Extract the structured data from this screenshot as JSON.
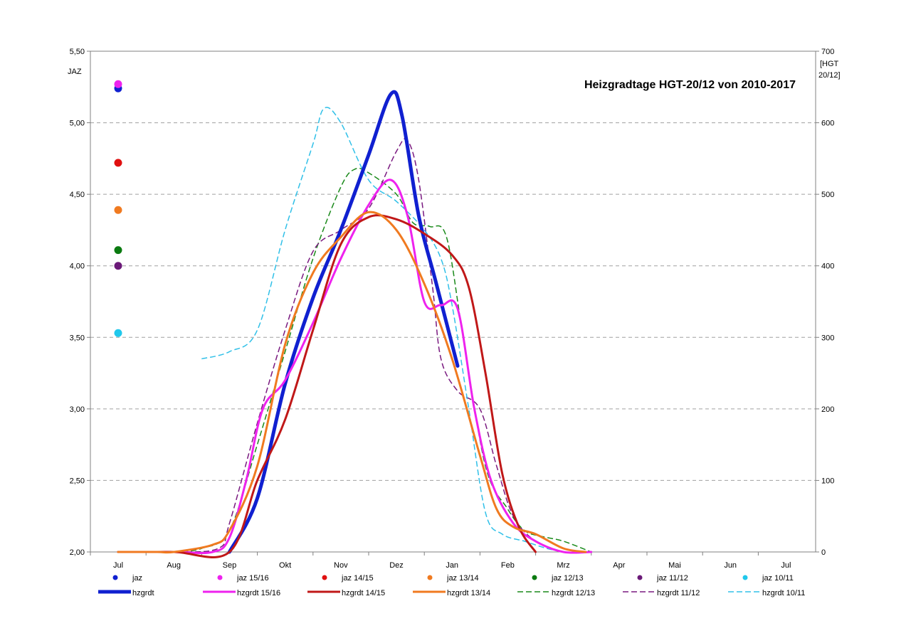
{
  "chart_data": {
    "type": "line",
    "title": "Heizgradtage HGT-20/12 von 2010-2017",
    "y_left": {
      "label": "JAZ",
      "range": [
        2.0,
        5.5
      ],
      "ticks": [
        "2,00",
        "2,50",
        "3,00",
        "3,50",
        "4,00",
        "4,50",
        "5,00",
        "5,50"
      ]
    },
    "y_right": {
      "label_line1": "[HGT",
      "label_line2": "20/12]",
      "range": [
        0,
        700
      ],
      "ticks": [
        "0",
        "100",
        "200",
        "300",
        "400",
        "500",
        "600",
        "700"
      ]
    },
    "x_ticks": [
      "Jul",
      "Aug",
      "Sep",
      "Okt",
      "Nov",
      "Dez",
      "Jan",
      "Feb",
      "Mrz",
      "Apr",
      "Mai",
      "Jun",
      "Jul"
    ],
    "grid": "horizontal dashed",
    "legend_position": "bottom",
    "jaz_points": [
      {
        "name": "jaz",
        "value": 5.24,
        "color": "#1020d0"
      },
      {
        "name": "jaz 15/16",
        "value": 5.27,
        "color": "#ee22ee"
      },
      {
        "name": "jaz 14/15",
        "value": 4.72,
        "color": "#e01010"
      },
      {
        "name": "jaz 13/14",
        "value": 4.39,
        "color": "#f07a20"
      },
      {
        "name": "jaz 12/13",
        "value": 4.11,
        "color": "#0a7a10"
      },
      {
        "name": "jaz 11/12",
        "value": 4.0,
        "color": "#6b1a78"
      },
      {
        "name": "jaz 10/11",
        "value": 3.53,
        "color": "#20c8ec"
      }
    ],
    "series": [
      {
        "name": "hzgrdt",
        "color": "#1020d0",
        "style": "solid",
        "width": 5,
        "points": [
          [
            2.0,
            0
          ],
          [
            2.5,
            75
          ],
          [
            3.0,
            235
          ],
          [
            3.5,
            355
          ],
          [
            4.0,
            450
          ],
          [
            4.5,
            555
          ],
          [
            4.9,
            640
          ],
          [
            5.1,
            610
          ],
          [
            5.4,
            470
          ],
          [
            5.7,
            380
          ],
          [
            6.1,
            260
          ]
        ]
      },
      {
        "name": "hzgrdt 15/16",
        "color": "#ee22ee",
        "style": "solid",
        "width": 3,
        "points": [
          [
            0,
            0
          ],
          [
            1,
            0
          ],
          [
            1.7,
            0
          ],
          [
            2.0,
            20
          ],
          [
            2.3,
            100
          ],
          [
            2.6,
            200
          ],
          [
            3.0,
            240
          ],
          [
            3.5,
            320
          ],
          [
            4.0,
            410
          ],
          [
            4.5,
            485
          ],
          [
            4.9,
            520
          ],
          [
            5.2,
            470
          ],
          [
            5.5,
            350
          ],
          [
            5.8,
            345
          ],
          [
            6.1,
            340
          ],
          [
            6.4,
            200
          ],
          [
            6.7,
            100
          ],
          [
            7.1,
            40
          ],
          [
            7.5,
            15
          ],
          [
            8.0,
            0
          ],
          [
            8.5,
            0
          ]
        ]
      },
      {
        "name": "hzgrdt 14/15",
        "color": "#c01818",
        "style": "solid",
        "width": 3,
        "points": [
          [
            0,
            0
          ],
          [
            1,
            0
          ],
          [
            2.0,
            0
          ],
          [
            2.5,
            100
          ],
          [
            3.0,
            185
          ],
          [
            3.5,
            310
          ],
          [
            4.0,
            430
          ],
          [
            4.5,
            468
          ],
          [
            5.0,
            465
          ],
          [
            5.5,
            445
          ],
          [
            6.0,
            415
          ],
          [
            6.3,
            370
          ],
          [
            6.6,
            250
          ],
          [
            6.9,
            110
          ],
          [
            7.2,
            35
          ],
          [
            7.5,
            0
          ]
        ]
      },
      {
        "name": "hzgrdt 13/14",
        "color": "#f07a20",
        "style": "solid",
        "width": 3,
        "points": [
          [
            0,
            0
          ],
          [
            0.7,
            0
          ],
          [
            1,
            0
          ],
          [
            1.7,
            10
          ],
          [
            2.0,
            30
          ],
          [
            2.5,
            120
          ],
          [
            3.0,
            290
          ],
          [
            3.5,
            390
          ],
          [
            4.0,
            440
          ],
          [
            4.5,
            475
          ],
          [
            5.0,
            450
          ],
          [
            5.5,
            375
          ],
          [
            6.0,
            270
          ],
          [
            6.5,
            135
          ],
          [
            6.8,
            60
          ],
          [
            7.1,
            35
          ],
          [
            7.5,
            25
          ],
          [
            8.0,
            5
          ],
          [
            8.4,
            0
          ]
        ]
      },
      {
        "name": "hzgrdt 12/13",
        "color": "#1a8a1a",
        "style": "dashed",
        "width": 1.5,
        "points": [
          [
            1.0,
            0
          ],
          [
            1.5,
            5
          ],
          [
            2.0,
            30
          ],
          [
            2.5,
            150
          ],
          [
            3.0,
            280
          ],
          [
            3.5,
            410
          ],
          [
            4.0,
            510
          ],
          [
            4.25,
            535
          ],
          [
            4.5,
            530
          ],
          [
            5.0,
            500
          ],
          [
            5.3,
            460
          ],
          [
            5.6,
            455
          ],
          [
            5.9,
            440
          ],
          [
            6.2,
            300
          ],
          [
            6.6,
            120
          ],
          [
            7.0,
            60
          ],
          [
            7.3,
            30
          ],
          [
            7.6,
            22
          ],
          [
            8.0,
            15
          ],
          [
            8.5,
            0
          ]
        ]
      },
      {
        "name": "hzgrdt 11/12",
        "color": "#7a1a80",
        "style": "dashed",
        "width": 1.5,
        "points": [
          [
            0,
            0
          ],
          [
            1,
            0
          ],
          [
            1.8,
            5
          ],
          [
            2.0,
            40
          ],
          [
            2.5,
            180
          ],
          [
            3.0,
            310
          ],
          [
            3.5,
            420
          ],
          [
            4.0,
            450
          ],
          [
            4.5,
            480
          ],
          [
            5.0,
            560
          ],
          [
            5.2,
            575
          ],
          [
            5.4,
            520
          ],
          [
            5.65,
            370
          ],
          [
            5.8,
            270
          ],
          [
            6.1,
            225
          ],
          [
            6.5,
            200
          ],
          [
            6.8,
            120
          ],
          [
            7.1,
            50
          ],
          [
            7.5,
            15
          ],
          [
            8.0,
            0
          ]
        ]
      },
      {
        "name": "hzgrdt 10/11",
        "color": "#30c0e8",
        "style": "dashed",
        "width": 1.5,
        "points": [
          [
            1.5,
            270
          ],
          [
            2.0,
            280
          ],
          [
            2.5,
            310
          ],
          [
            3.0,
            450
          ],
          [
            3.5,
            570
          ],
          [
            3.7,
            620
          ],
          [
            4.0,
            600
          ],
          [
            4.5,
            520
          ],
          [
            5.0,
            490
          ],
          [
            5.5,
            450
          ],
          [
            5.8,
            410
          ],
          [
            6.0,
            345
          ],
          [
            6.3,
            200
          ],
          [
            6.6,
            55
          ],
          [
            6.9,
            25
          ],
          [
            7.3,
            15
          ],
          [
            7.7,
            5
          ],
          [
            8.0,
            0
          ]
        ]
      }
    ],
    "legend_row1": [
      "jaz",
      "jaz 15/16",
      "jaz 14/15",
      "jaz 13/14",
      "jaz 12/13",
      "jaz 11/12",
      "jaz 10/11"
    ],
    "legend_row2": [
      "hzgrdt",
      "hzgrdt 15/16",
      "hzgrdt 14/15",
      "hzgrdt 13/14",
      "hzgrdt 12/13",
      "hzgrdt 11/12",
      "hzgrdt 10/11"
    ]
  }
}
